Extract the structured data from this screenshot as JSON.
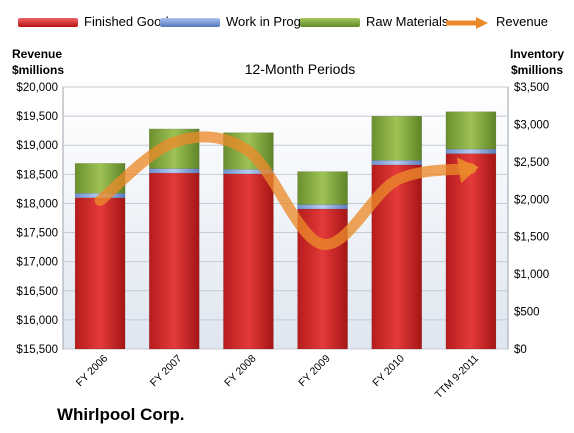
{
  "chart_data": {
    "type": "bar",
    "title": "12-Month Periods",
    "categories": [
      "FY 2006",
      "FY 2007",
      "FY 2008",
      "FY 2009",
      "FY 2010",
      "TTM 9-2011"
    ],
    "series": [
      {
        "name": "Finished Goods",
        "axis": "right",
        "stacked": true,
        "color": "#cc2222",
        "values": [
          2020,
          2350,
          2340,
          1870,
          2460,
          2610
        ]
      },
      {
        "name": "Work in Progress",
        "axis": "right",
        "stacked": true,
        "color": "#7799dd",
        "values": [
          60,
          60,
          60,
          60,
          60,
          60
        ]
      },
      {
        "name": "Raw Materials",
        "axis": "right",
        "stacked": true,
        "color": "#7ea33a",
        "values": [
          400,
          530,
          490,
          440,
          590,
          500
        ]
      },
      {
        "name": "Revenue",
        "axis": "left",
        "type": "line",
        "color": "#ea8a2a",
        "values": [
          18050,
          19050,
          18900,
          17300,
          18400,
          18600
        ]
      }
    ],
    "ylabel_left": "Revenue\n$millions",
    "ylabel_right": "Inventory\n$millions",
    "ylim_left": [
      15500,
      20000
    ],
    "ylim_right": [
      0,
      3500
    ],
    "yticks_left": [
      "$15,500",
      "$16,000",
      "$16,500",
      "$17,000",
      "$17,500",
      "$18,000",
      "$18,500",
      "$19,000",
      "$19,500",
      "$20,000"
    ],
    "yticks_right": [
      "$0",
      "$500",
      "$1,000",
      "$1,500",
      "$2,000",
      "$2,500",
      "$3,000",
      "$3,500"
    ],
    "legend_position": "top",
    "grid": true,
    "footer": "Whirlpool Corp."
  }
}
